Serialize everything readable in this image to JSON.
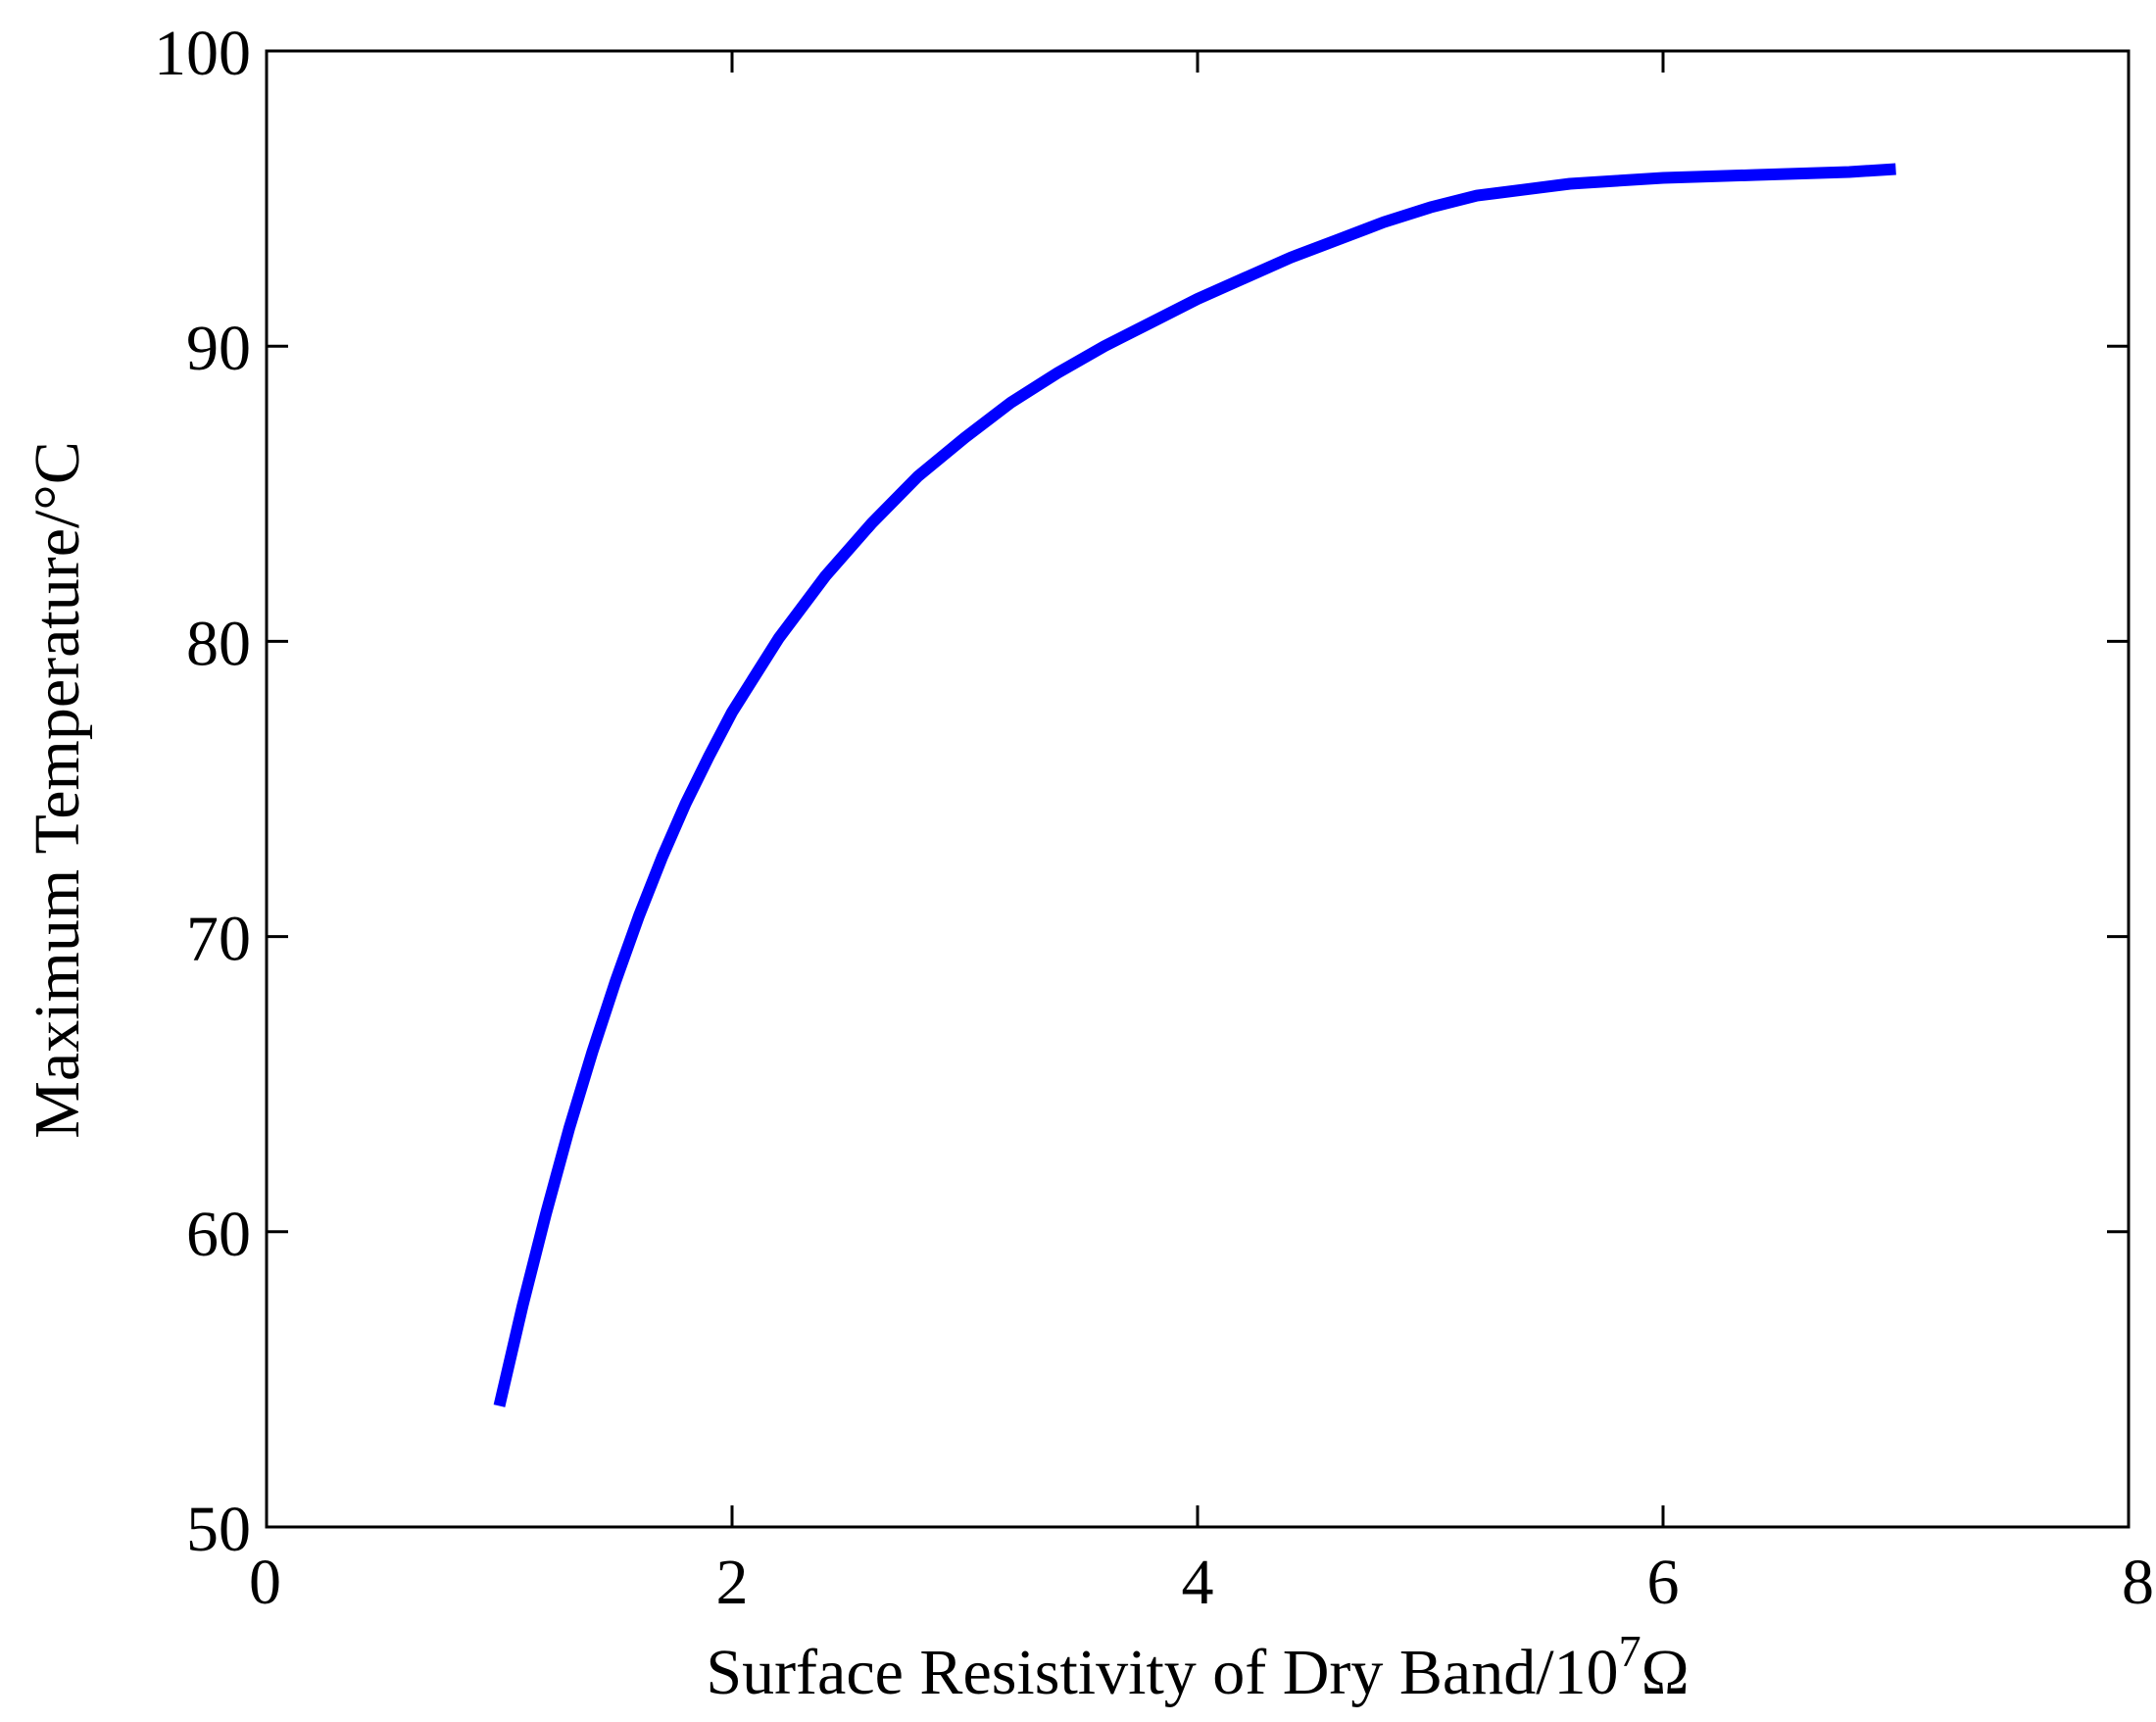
{
  "chart_data": {
    "type": "line",
    "title": "",
    "xlabel": "Surface Resistivity of Dry Band/10",
    "xlabel_superscript": "7",
    "xlabel_unit": "Ω",
    "ylabel": "Maximum Temperature/°C",
    "xlim": [
      0,
      8
    ],
    "ylim": [
      50,
      100
    ],
    "x_ticks": [
      0,
      2,
      4,
      6,
      8
    ],
    "y_ticks": [
      50,
      60,
      70,
      80,
      90,
      100
    ],
    "grid": false,
    "series": [
      {
        "name": "Maximum Temperature",
        "color": "#0000ff",
        "x": [
          1.0,
          1.1,
          1.2,
          1.3,
          1.4,
          1.5,
          1.6,
          1.7,
          1.8,
          1.9,
          2.0,
          2.2,
          2.4,
          2.6,
          2.8,
          3.0,
          3.2,
          3.4,
          3.6,
          3.8,
          4.0,
          4.2,
          4.4,
          4.6,
          4.8,
          5.0,
          5.2,
          5.4,
          5.6,
          5.8,
          6.0,
          6.2,
          6.4,
          6.6,
          6.8,
          7.0
        ],
        "y": [
          54.1,
          57.5,
          60.6,
          63.5,
          66.1,
          68.5,
          70.7,
          72.7,
          74.5,
          76.1,
          77.6,
          80.1,
          82.2,
          84.0,
          85.6,
          86.9,
          88.1,
          89.1,
          90.0,
          90.8,
          91.6,
          92.3,
          93.0,
          93.6,
          94.2,
          94.7,
          95.1,
          95.3,
          95.5,
          95.6,
          95.7,
          95.75,
          95.8,
          95.85,
          95.9,
          96.0
        ]
      }
    ]
  }
}
